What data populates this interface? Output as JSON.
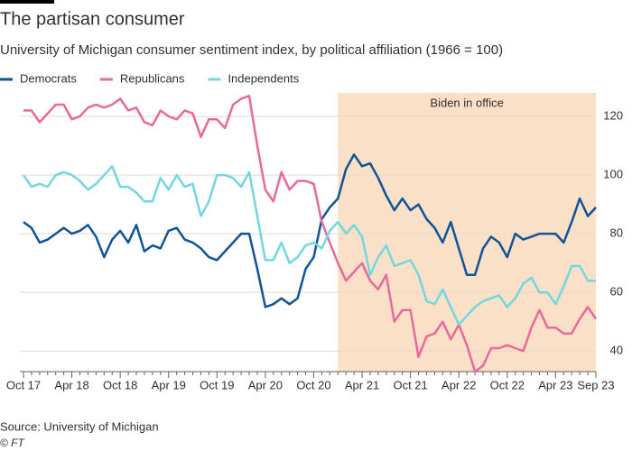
{
  "chart_data": {
    "type": "line",
    "title": "The partisan consumer",
    "subtitle": "University of Michigan consumer sentiment index, by political affiliation (1966 = 100)",
    "source": "Source: University of Michigan",
    "credit": "© FT",
    "categories": [
      "Oct 17",
      null,
      null,
      null,
      null,
      null,
      "Apr 18",
      null,
      null,
      null,
      null,
      null,
      "Oct 18",
      null,
      null,
      null,
      null,
      null,
      "Apr 19",
      null,
      null,
      null,
      null,
      null,
      "Oct 19",
      null,
      null,
      null,
      null,
      null,
      "Apr 20",
      null,
      null,
      null,
      null,
      null,
      "Oct 20",
      null,
      null,
      null,
      null,
      null,
      "Apr 21",
      null,
      null,
      null,
      null,
      null,
      "Oct 21",
      null,
      null,
      null,
      null,
      null,
      "Apr 22",
      null,
      null,
      null,
      null,
      null,
      "Oct 22",
      null,
      null,
      null,
      null,
      null,
      "Apr 23",
      null,
      null,
      null,
      null,
      "Sep 23"
    ],
    "series": [
      {
        "name": "Democrats",
        "color": "#0f5499",
        "values": [
          84,
          82,
          77,
          78,
          80,
          82,
          80,
          81,
          83,
          79,
          72,
          78,
          81,
          77,
          83,
          74,
          76,
          75,
          81,
          82,
          78,
          77,
          75,
          72,
          71,
          74,
          77,
          80,
          80,
          68,
          55,
          56,
          58,
          56,
          58,
          68,
          72,
          85,
          89,
          92,
          102,
          107,
          103,
          104,
          99,
          93,
          88,
          92,
          88,
          90,
          85,
          82,
          77,
          84,
          75,
          66,
          66,
          75,
          79,
          77,
          72,
          80,
          78,
          79,
          80,
          80,
          80,
          77,
          84,
          92,
          86,
          89
        ]
      },
      {
        "name": "Republicans",
        "color": "#e8699a",
        "values": [
          122,
          122,
          118,
          121,
          124,
          124,
          119,
          120,
          123,
          124,
          123,
          124,
          126,
          122,
          123,
          118,
          117,
          122,
          120,
          119,
          122,
          121,
          113,
          119,
          119,
          116,
          124,
          126,
          127,
          110,
          95,
          91,
          101,
          95,
          98,
          98,
          97,
          84,
          77,
          70,
          64,
          67,
          70,
          64,
          61,
          66,
          50,
          54,
          54,
          38,
          45,
          46,
          50,
          44,
          49,
          42,
          33,
          35,
          41,
          41,
          42,
          41,
          40,
          48,
          54,
          48,
          48,
          46,
          46,
          51,
          55,
          51
        ]
      },
      {
        "name": "Independents",
        "color": "#72d7e0",
        "values": [
          100,
          96,
          97,
          96,
          100,
          101,
          100,
          98,
          95,
          97,
          100,
          103,
          96,
          96,
          94,
          91,
          91,
          99,
          95,
          100,
          96,
          97,
          86,
          91,
          100,
          100,
          99,
          96,
          101,
          86,
          71,
          71,
          77,
          70,
          72,
          76,
          77,
          75,
          81,
          84,
          80,
          83,
          79,
          66,
          72,
          76,
          69,
          70,
          71,
          66,
          57,
          56,
          61,
          55,
          49,
          52,
          55,
          57,
          58,
          59,
          55,
          58,
          63,
          65,
          60,
          60,
          56,
          62,
          69,
          69,
          64,
          64
        ]
      }
    ],
    "highlight": {
      "label": "Biden in office",
      "start": 39,
      "end": 71
    },
    "ylim": [
      33,
      128
    ],
    "yticks": [
      40,
      60,
      80,
      100,
      120
    ],
    "grid": true,
    "legend": "top"
  }
}
